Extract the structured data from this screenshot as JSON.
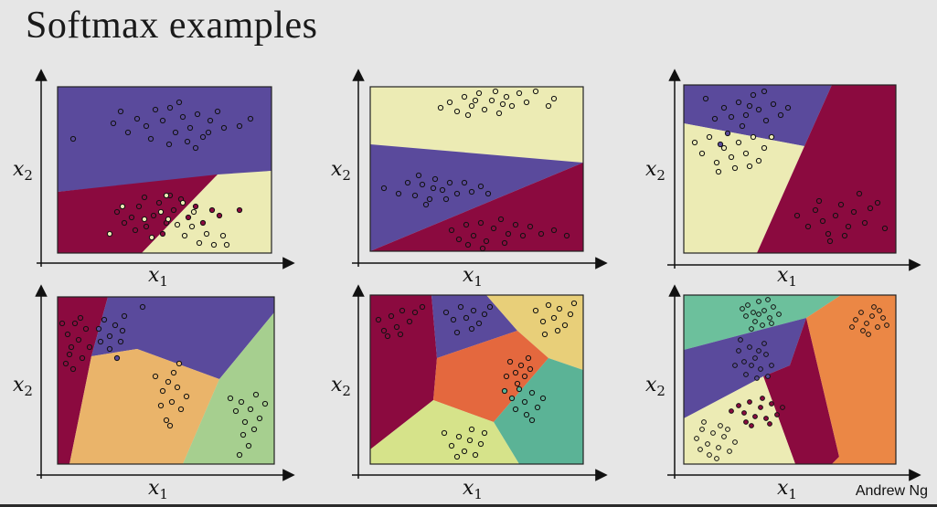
{
  "slide": {
    "title": "Softmax examples",
    "footer": "Andrew Ng"
  },
  "axes": {
    "x_label": "x",
    "x_sub": "1",
    "y_label": "x",
    "y_sub": "2"
  },
  "colors": {
    "purple": "#5a4a9c",
    "crimson": "#8b0a3f",
    "cream": "#ecebb4",
    "green": "#a6cf8f",
    "orange": "#eab46a",
    "orange_red": "#e4683e",
    "teal": "#5bb396",
    "lime": "#d6e38a",
    "mint": "#6cc09c",
    "orange2": "#eb8745",
    "yellow": "#e8cf79"
  }
}
